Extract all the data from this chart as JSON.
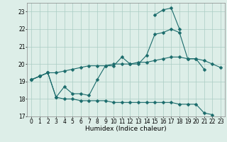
{
  "xlabel": "Humidex (Indice chaleur)",
  "x_values": [
    0,
    1,
    2,
    3,
    4,
    5,
    6,
    7,
    8,
    9,
    10,
    11,
    12,
    13,
    14,
    15,
    16,
    17,
    18,
    19,
    20,
    21,
    22,
    23
  ],
  "line1": [
    19.1,
    19.3,
    19.5,
    19.5,
    19.6,
    19.7,
    19.8,
    19.9,
    19.9,
    19.9,
    20.0,
    20.0,
    20.0,
    20.1,
    20.1,
    20.2,
    20.3,
    20.4,
    20.4,
    20.3,
    20.3,
    20.2,
    20.0,
    19.8
  ],
  "line2": [
    19.1,
    19.3,
    19.5,
    18.1,
    18.7,
    18.3,
    18.3,
    18.2,
    19.1,
    19.9,
    19.9,
    20.4,
    20.0,
    20.0,
    20.5,
    21.7,
    21.8,
    22.0,
    21.8,
    20.3,
    20.3,
    19.7,
    null,
    null
  ],
  "line3": [
    19.1,
    19.3,
    19.5,
    18.1,
    18.0,
    18.0,
    17.9,
    17.9,
    17.9,
    17.9,
    17.8,
    17.8,
    17.8,
    17.8,
    17.8,
    17.8,
    17.8,
    17.8,
    17.7,
    17.7,
    17.7,
    17.2,
    17.1,
    null
  ],
  "line4": [
    null,
    null,
    null,
    null,
    null,
    null,
    null,
    null,
    null,
    null,
    null,
    null,
    null,
    null,
    null,
    22.8,
    23.1,
    23.2,
    22.0,
    null,
    null,
    null,
    null,
    null
  ],
  "bg_color": "#ddeee8",
  "grid_color": "#aaccc4",
  "line_color": "#1a6b6b",
  "markersize": 2.5,
  "ylim": [
    17,
    23.5
  ],
  "yticks": [
    17,
    18,
    19,
    20,
    21,
    22,
    23
  ],
  "xlim": [
    -0.5,
    23.5
  ],
  "label_fontsize": 6.5,
  "tick_fontsize": 5.5
}
